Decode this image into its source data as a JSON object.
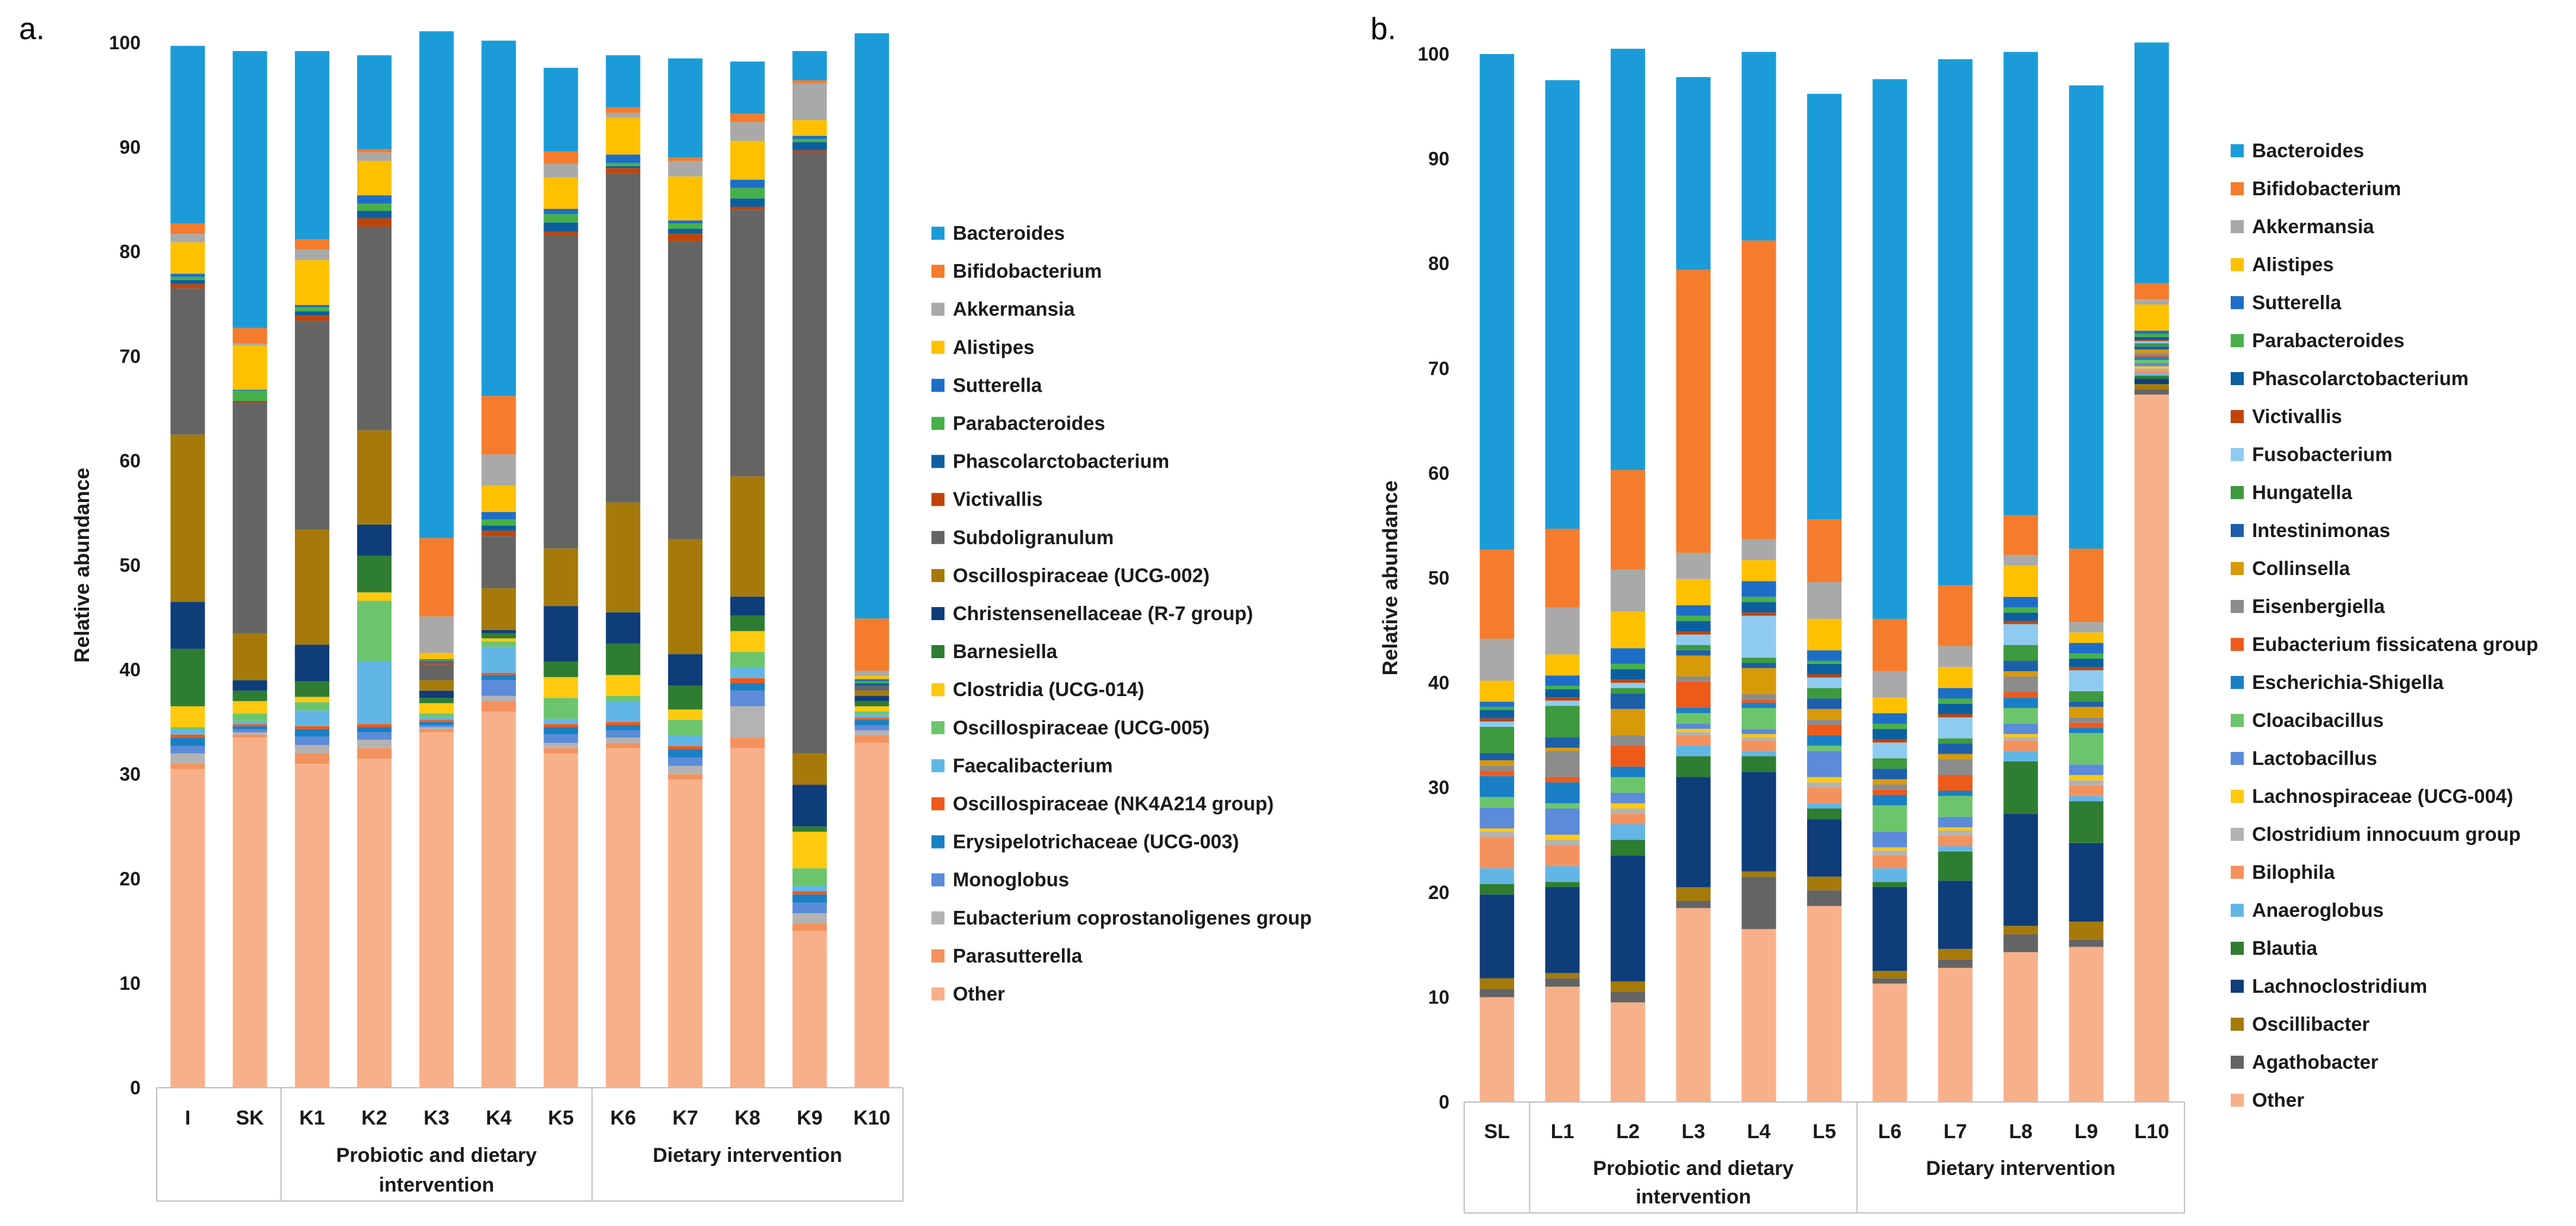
{
  "chart_data": [
    {
      "panel": "a.",
      "type": "bar",
      "stacked": true,
      "ylabel": "Relative abundance",
      "ylim": [
        0,
        100
      ],
      "yticks": [
        "0",
        "10",
        "20",
        "30",
        "40",
        "50",
        "60",
        "70",
        "80",
        "90",
        "100"
      ],
      "categories": [
        "I",
        "SK",
        "K1",
        "K2",
        "K3",
        "K4",
        "K5",
        "K6",
        "K7",
        "K8",
        "K9",
        "K10"
      ],
      "groups": [
        {
          "label": "Probiotic and dietary intervention",
          "from": 2,
          "to": 6
        },
        {
          "label": "Dietary intervention",
          "from": 7,
          "to": 11
        }
      ],
      "series": [
        {
          "name": "Other",
          "color": "#F8B08A",
          "values": [
            30.5,
            33.5,
            31.0,
            31.5,
            34.0,
            36.0,
            32.0,
            32.5,
            29.5,
            32.5,
            15.0,
            33.0
          ]
        },
        {
          "name": "Parasutterella",
          "color": "#F4925E",
          "values": [
            0.5,
            0.3,
            1.0,
            1.0,
            0.3,
            1.0,
            0.5,
            0.5,
            0.5,
            1.0,
            0.7,
            0.7
          ]
        },
        {
          "name": "Eubacterium coprostanoligenes group",
          "color": "#B3B3B3",
          "values": [
            1.0,
            0.2,
            0.8,
            0.8,
            0.2,
            0.5,
            0.5,
            0.5,
            0.8,
            3.0,
            1.0,
            0.5
          ]
        },
        {
          "name": "Monoglobus",
          "color": "#5B8BD9",
          "values": [
            0.7,
            0.3,
            0.8,
            0.7,
            0.2,
            1.5,
            0.8,
            0.7,
            0.8,
            1.5,
            1.0,
            0.5
          ]
        },
        {
          "name": "Erysipelotrichaceae (UCG-003)",
          "color": "#1A7FC4",
          "values": [
            0.8,
            0.3,
            0.7,
            0.5,
            0.3,
            0.5,
            0.7,
            0.5,
            0.8,
            0.7,
            0.8,
            0.5
          ]
        },
        {
          "name": "Oscillospiraceae (NK4A214 group)",
          "color": "#EE5A1A",
          "values": [
            0.3,
            0.2,
            0.3,
            0.3,
            0.2,
            0.2,
            0.3,
            0.3,
            0.3,
            0.5,
            0.3,
            0.2
          ]
        },
        {
          "name": "Faecalibacterium",
          "color": "#62B6E6",
          "values": [
            0.5,
            0.3,
            1.5,
            6.0,
            0.3,
            2.5,
            0.5,
            2.0,
            1.0,
            1.0,
            0.5,
            0.3
          ]
        },
        {
          "name": "Oscillospiraceae (UCG-005)",
          "color": "#6CC56C",
          "values": [
            0.2,
            0.7,
            0.8,
            5.8,
            0.3,
            0.5,
            2.0,
            0.5,
            1.5,
            1.5,
            1.7,
            0.3
          ]
        },
        {
          "name": "Clostridia (UCG-014)",
          "color": "#FFC90E",
          "values": [
            2.0,
            1.2,
            0.5,
            0.8,
            1.0,
            0.3,
            2.0,
            2.0,
            1.0,
            2.0,
            3.5,
            0.5
          ]
        },
        {
          "name": "Barnesiella",
          "color": "#2E7D32",
          "values": [
            5.5,
            1.0,
            1.5,
            3.5,
            0.5,
            0.5,
            1.5,
            3.0,
            2.3,
            1.5,
            0.5,
            0.5
          ]
        },
        {
          "name": "Christensenellaceae (R-7 group)",
          "color": "#0F3D7A",
          "values": [
            4.5,
            1.0,
            3.5,
            3.0,
            0.7,
            0.3,
            5.3,
            3.0,
            3.0,
            1.8,
            4.0,
            0.5
          ]
        },
        {
          "name": "Oscillospiraceae (UCG-002)",
          "color": "#A57A0A",
          "values": [
            16.0,
            4.5,
            11.0,
            9.0,
            1.0,
            4.0,
            5.5,
            10.5,
            11.0,
            11.5,
            3.0,
            0.5
          ]
        },
        {
          "name": "Subdoligranulum",
          "color": "#646464",
          "values": [
            14.0,
            22.0,
            20.0,
            19.5,
            1.5,
            5.0,
            30.0,
            31.5,
            28.5,
            25.5,
            57.5,
            0.5
          ]
        },
        {
          "name": "Victivallis",
          "color": "#C0440A",
          "values": [
            0.4,
            0.1,
            0.5,
            0.8,
            0.2,
            0.5,
            0.3,
            0.5,
            0.7,
            0.3,
            0.2,
            0.0
          ]
        },
        {
          "name": "Phascolarctobacterium",
          "color": "#0B5F9E",
          "values": [
            0.4,
            0.1,
            0.4,
            0.7,
            0.1,
            0.5,
            0.9,
            0.2,
            0.5,
            0.8,
            0.8,
            0.2
          ]
        },
        {
          "name": "Parabacteroides",
          "color": "#48B048",
          "values": [
            0.3,
            1.0,
            0.4,
            0.7,
            0.1,
            0.6,
            0.8,
            0.3,
            0.5,
            1.0,
            0.3,
            0.2
          ]
        },
        {
          "name": "Sutterella",
          "color": "#1E6EC8",
          "values": [
            0.3,
            0.1,
            0.2,
            0.8,
            0.1,
            0.7,
            0.5,
            0.8,
            0.3,
            0.8,
            0.3,
            0.2
          ]
        },
        {
          "name": "Alistipes",
          "color": "#FFC000",
          "values": [
            3.0,
            4.2,
            4.3,
            3.3,
            0.6,
            2.5,
            3.0,
            3.5,
            4.2,
            3.7,
            1.5,
            0.3
          ]
        },
        {
          "name": "Akkermansia",
          "color": "#A9A9A9",
          "values": [
            0.8,
            0.2,
            1.0,
            0.8,
            3.5,
            3.0,
            1.3,
            0.5,
            1.5,
            1.8,
            3.5,
            0.5
          ]
        },
        {
          "name": "Bifidobacterium",
          "color": "#F47C2C",
          "values": [
            1.0,
            1.5,
            1.0,
            0.3,
            7.5,
            5.6,
            1.2,
            0.5,
            0.3,
            0.8,
            0.3,
            5.0
          ]
        },
        {
          "name": "Bacteroides",
          "color": "#1B9CD8",
          "values": [
            17.0,
            26.5,
            18.0,
            9.0,
            48.5,
            34.0,
            8.0,
            5.0,
            9.5,
            5.0,
            2.8,
            56.0
          ]
        }
      ],
      "legend": [
        "Bacteroides",
        "Bifidobacterium",
        "Akkermansia",
        "Alistipes",
        "Sutterella",
        "Parabacteroides",
        "Phascolarctobacterium",
        "Victivallis",
        "Subdoligranulum",
        "Oscillospiraceae (UCG-002)",
        "Christensenellaceae (R-7 group)",
        "Barnesiella",
        "Clostridia (UCG-014)",
        "Oscillospiraceae (UCG-005)",
        "Faecalibacterium",
        "Oscillospiraceae (NK4A214 group)",
        "Erysipelotrichaceae (UCG-003)",
        "Monoglobus",
        "Eubacterium coprostanoligenes group",
        "Parasutterella",
        "Other"
      ]
    },
    {
      "panel": "b.",
      "type": "bar",
      "stacked": true,
      "ylabel": "Relative abundance",
      "ylim": [
        0,
        100
      ],
      "yticks": [
        "0",
        "10",
        "20",
        "30",
        "40",
        "50",
        "60",
        "70",
        "80",
        "90",
        "100"
      ],
      "categories": [
        "SL",
        "L1",
        "L2",
        "L3",
        "L4",
        "L5",
        "L6",
        "L7",
        "L8",
        "L9",
        "L10"
      ],
      "groups": [
        {
          "label": "Probiotic and dietary intervention",
          "from": 1,
          "to": 5
        },
        {
          "label": "Dietary intervention",
          "from": 6,
          "to": 10
        }
      ],
      "series": [
        {
          "name": "Other",
          "color": "#F8B08A",
          "values": [
            10.0,
            11.0,
            9.5,
            18.5,
            16.5,
            18.7,
            11.3,
            12.8,
            14.3,
            14.8,
            67.5
          ]
        },
        {
          "name": "Agathobacter",
          "color": "#646464",
          "values": [
            0.8,
            0.8,
            1.0,
            0.7,
            5.0,
            1.5,
            0.5,
            0.8,
            1.7,
            0.7,
            0.5
          ]
        },
        {
          "name": "Oscillibacter",
          "color": "#A57A0A",
          "values": [
            1.0,
            0.5,
            1.0,
            1.3,
            0.5,
            1.3,
            0.7,
            1.0,
            0.8,
            1.7,
            0.5
          ]
        },
        {
          "name": "Lachnoclostridium",
          "color": "#0F3D7A",
          "values": [
            8.0,
            8.2,
            12.0,
            10.5,
            9.5,
            5.5,
            8.0,
            6.5,
            10.7,
            7.5,
            0.5
          ]
        },
        {
          "name": "Blautia",
          "color": "#2E7D32",
          "values": [
            1.0,
            0.5,
            1.5,
            2.0,
            1.5,
            1.0,
            0.5,
            2.8,
            5.0,
            4.0,
            0.3
          ]
        },
        {
          "name": "Anaeroglobus",
          "color": "#62B6E6",
          "values": [
            1.5,
            1.5,
            1.5,
            1.0,
            0.5,
            0.5,
            1.3,
            0.5,
            1.0,
            0.5,
            0.2
          ]
        },
        {
          "name": "Bilophila",
          "color": "#F4925E",
          "values": [
            3.0,
            2.0,
            1.0,
            1.0,
            1.0,
            1.5,
            1.2,
            1.0,
            1.0,
            1.0,
            0.3
          ]
        },
        {
          "name": "Clostridium innocuum group",
          "color": "#B3B3B3",
          "values": [
            0.5,
            0.5,
            0.5,
            0.3,
            0.3,
            0.5,
            0.5,
            0.5,
            0.3,
            0.5,
            0.2
          ]
        },
        {
          "name": "Lachnospiraceae (UCG-004)",
          "color": "#FFC90E",
          "values": [
            0.3,
            0.5,
            0.5,
            0.3,
            0.3,
            0.5,
            0.3,
            0.3,
            0.3,
            0.5,
            0.2
          ]
        },
        {
          "name": "Lactobacillus",
          "color": "#5B8BD9",
          "values": [
            2.0,
            2.5,
            1.0,
            0.5,
            0.5,
            2.5,
            1.5,
            1.0,
            1.0,
            1.0,
            0.3
          ]
        },
        {
          "name": "Cloacibacillus",
          "color": "#6CC56C",
          "values": [
            1.0,
            0.5,
            1.5,
            1.0,
            2.0,
            0.5,
            2.5,
            2.0,
            1.5,
            3.0,
            0.3
          ]
        },
        {
          "name": "Escherichia-Shigella",
          "color": "#1A7FC4",
          "values": [
            2.0,
            2.0,
            1.0,
            0.5,
            0.5,
            1.0,
            1.0,
            0.5,
            1.0,
            0.5,
            0.3
          ]
        },
        {
          "name": "Eubacterium fissicatena group",
          "color": "#EE5A1A",
          "values": [
            0.5,
            0.5,
            2.0,
            2.5,
            0.3,
            1.0,
            0.5,
            1.5,
            0.5,
            0.5,
            0.2
          ]
        },
        {
          "name": "Eisenbergiella",
          "color": "#8C8C8C",
          "values": [
            0.5,
            2.5,
            1.0,
            0.5,
            0.5,
            0.5,
            0.5,
            1.5,
            1.5,
            0.5,
            0.2
          ]
        },
        {
          "name": "Collinsella",
          "color": "#D99A0A",
          "values": [
            0.5,
            0.3,
            2.5,
            2.0,
            2.5,
            1.0,
            0.5,
            0.5,
            0.5,
            1.0,
            0.3
          ]
        },
        {
          "name": "Intestinimonas",
          "color": "#1D5FA8",
          "values": [
            0.7,
            1.0,
            1.5,
            0.5,
            0.5,
            1.0,
            1.0,
            1.0,
            1.0,
            0.5,
            0.3
          ]
        },
        {
          "name": "Hungatella",
          "color": "#3E9A3E",
          "values": [
            2.5,
            3.0,
            0.5,
            0.5,
            0.5,
            1.0,
            1.0,
            0.5,
            1.5,
            1.0,
            0.3
          ]
        },
        {
          "name": "Fusobacterium",
          "color": "#8FCBF0",
          "values": [
            0.5,
            0.5,
            0.5,
            1.0,
            4.0,
            1.0,
            1.5,
            2.0,
            2.0,
            2.0,
            0.2
          ]
        },
        {
          "name": "Victivallis",
          "color": "#C0440A",
          "values": [
            0.3,
            0.3,
            0.3,
            0.3,
            0.3,
            0.3,
            0.3,
            0.3,
            0.3,
            0.3,
            0.1
          ]
        },
        {
          "name": "Phascolarctobacterium",
          "color": "#0B5F9E",
          "values": [
            0.8,
            0.8,
            1.0,
            1.0,
            1.0,
            1.0,
            1.0,
            1.0,
            0.8,
            0.8,
            0.3
          ]
        },
        {
          "name": "Parabacteroides",
          "color": "#48B048",
          "values": [
            0.3,
            0.3,
            0.5,
            0.5,
            0.5,
            0.3,
            0.5,
            0.5,
            0.5,
            0.5,
            0.3
          ]
        },
        {
          "name": "Sutterella",
          "color": "#1E6EC8",
          "values": [
            0.5,
            1.0,
            1.5,
            1.0,
            1.5,
            1.0,
            1.0,
            1.0,
            1.0,
            1.0,
            0.3
          ]
        },
        {
          "name": "Alistipes",
          "color": "#FFC000",
          "values": [
            2.0,
            2.0,
            3.5,
            2.5,
            2.0,
            3.0,
            1.5,
            2.0,
            3.0,
            1.0,
            2.5
          ]
        },
        {
          "name": "Akkermansia",
          "color": "#A9A9A9",
          "values": [
            4.0,
            4.5,
            4.0,
            2.5,
            2.0,
            3.5,
            2.5,
            2.0,
            1.0,
            1.0,
            0.5
          ]
        },
        {
          "name": "Bifidobacterium",
          "color": "#F47C2C",
          "values": [
            8.5,
            7.5,
            9.5,
            27.0,
            28.5,
            6.0,
            5.0,
            5.8,
            3.8,
            7.0,
            1.5
          ]
        },
        {
          "name": "Bacteroides",
          "color": "#1B9CD8",
          "values": [
            47.3,
            42.8,
            40.2,
            18.4,
            18.0,
            40.6,
            51.5,
            50.2,
            44.2,
            44.2,
            23.0
          ]
        }
      ],
      "legend": [
        "Bacteroides",
        "Bifidobacterium",
        "Akkermansia",
        "Alistipes",
        "Sutterella",
        "Parabacteroides",
        "Phascolarctobacterium",
        "Victivallis",
        "Fusobacterium",
        "Hungatella",
        "Intestinimonas",
        "Collinsella",
        "Eisenbergiella",
        "Eubacterium fissicatena group",
        "Escherichia-Shigella",
        "Cloacibacillus",
        "Lactobacillus",
        "Lachnospiraceae (UCG-004)",
        "Clostridium innocuum group",
        "Bilophila",
        "Anaeroglobus",
        "Blautia",
        "Lachnoclostridium",
        "Oscillibacter",
        "Agathobacter",
        "Other"
      ]
    }
  ]
}
